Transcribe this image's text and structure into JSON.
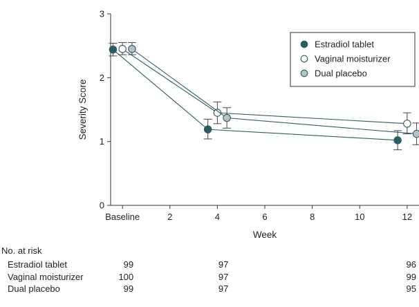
{
  "chart_data": {
    "type": "line",
    "xlabel": "Week",
    "ylabel": "Severity Score",
    "xlim": [
      -0.5,
      12.5
    ],
    "ylim": [
      0,
      3
    ],
    "x_ticks": [
      {
        "value": 0,
        "label": "Baseline"
      },
      {
        "value": 2,
        "label": "2"
      },
      {
        "value": 4,
        "label": "4"
      },
      {
        "value": 6,
        "label": "6"
      },
      {
        "value": 8,
        "label": "8"
      },
      {
        "value": 10,
        "label": "10"
      },
      {
        "value": 12,
        "label": "12"
      }
    ],
    "y_ticks": [
      0,
      1,
      2,
      3
    ],
    "legend_position": "top-right",
    "series": [
      {
        "name": "Estradiol tablet",
        "fill": "#2f5b63",
        "stroke": "#2f5b63",
        "points": [
          {
            "x": -0.4,
            "y": 2.44,
            "lo": 2.34,
            "hi": 2.54
          },
          {
            "x": 3.6,
            "y": 1.19,
            "lo": 1.04,
            "hi": 1.35
          },
          {
            "x": 11.6,
            "y": 1.02,
            "lo": 0.87,
            "hi": 1.17
          }
        ]
      },
      {
        "name": "Vaginal moisturizer",
        "fill": "#ffffff",
        "stroke": "#2f5b63",
        "points": [
          {
            "x": 0.0,
            "y": 2.45,
            "lo": 2.36,
            "hi": 2.55
          },
          {
            "x": 4.0,
            "y": 1.45,
            "lo": 1.28,
            "hi": 1.62
          },
          {
            "x": 12.0,
            "y": 1.28,
            "lo": 1.12,
            "hi": 1.45
          }
        ]
      },
      {
        "name": "Dual placebo",
        "fill": "#b5c2c4",
        "stroke": "#2f5b63",
        "points": [
          {
            "x": 0.4,
            "y": 2.45,
            "lo": 2.36,
            "hi": 2.55
          },
          {
            "x": 4.4,
            "y": 1.37,
            "lo": 1.21,
            "hi": 1.53
          },
          {
            "x": 12.4,
            "y": 1.12,
            "lo": 0.95,
            "hi": 1.29
          }
        ]
      }
    ],
    "at_risk": {
      "title": "No. at risk",
      "rows": [
        {
          "label": "Estradiol tablet",
          "values": [
            {
              "x": 0,
              "n": "99"
            },
            {
              "x": 4,
              "n": "97"
            },
            {
              "x": 12,
              "n": "96"
            }
          ]
        },
        {
          "label": "Vaginal moisturizer",
          "values": [
            {
              "x": 0,
              "n": "100"
            },
            {
              "x": 4,
              "n": "97"
            },
            {
              "x": 12,
              "n": "99"
            }
          ]
        },
        {
          "label": "Dual placebo",
          "values": [
            {
              "x": 0,
              "n": "99"
            },
            {
              "x": 4,
              "n": "97"
            },
            {
              "x": 12,
              "n": "95"
            }
          ]
        }
      ]
    }
  }
}
